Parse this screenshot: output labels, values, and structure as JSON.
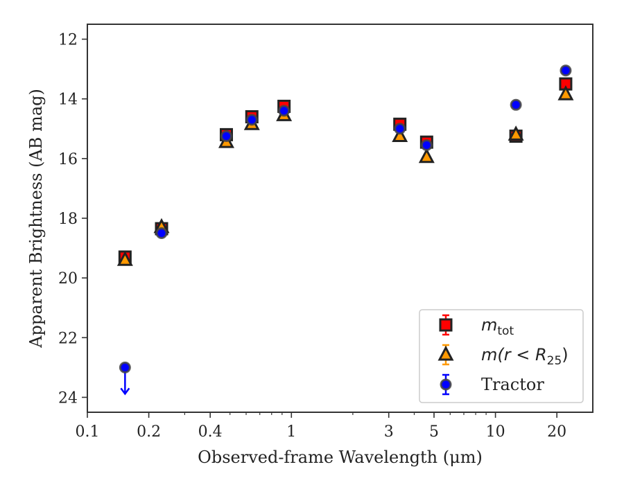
{
  "chart_data": {
    "type": "scatter",
    "title": "",
    "xlabel": "Observed-frame Wavelength (μm)",
    "ylabel": "Apparent Brightness (AB mag)",
    "xscale": "log",
    "xlim": [
      0.1,
      30
    ],
    "ylim": [
      24.5,
      11.5
    ],
    "y_inverted": true,
    "x_ticks": [
      0.1,
      0.2,
      0.4,
      1,
      3,
      5,
      10,
      20
    ],
    "x_tick_labels": [
      "0.1",
      "0.2",
      "0.4",
      "1",
      "3",
      "5",
      "10",
      "20"
    ],
    "y_ticks": [
      12,
      14,
      16,
      18,
      20,
      22,
      24
    ],
    "y_tick_labels": [
      "12",
      "14",
      "16",
      "18",
      "20",
      "22",
      "24"
    ],
    "grid": false,
    "legend_position": "lower-right",
    "series": [
      {
        "key": "mtot",
        "name": "m_tot",
        "marker": "square",
        "color": "#ff0000",
        "edge": "#222222",
        "points": [
          {
            "x": 0.153,
            "y": 19.3
          },
          {
            "x": 0.231,
            "y": 18.35
          },
          {
            "x": 0.48,
            "y": 15.2
          },
          {
            "x": 0.64,
            "y": 14.6
          },
          {
            "x": 0.92,
            "y": 14.25
          },
          {
            "x": 3.4,
            "y": 14.85
          },
          {
            "x": 4.6,
            "y": 15.45
          },
          {
            "x": 12.6,
            "y": 15.25
          },
          {
            "x": 22.1,
            "y": 13.5
          }
        ]
      },
      {
        "key": "mr25",
        "name": "m(r < R25)",
        "marker": "triangle",
        "color": "#ff9900",
        "edge": "#222222",
        "points": [
          {
            "x": 0.153,
            "y": 19.4
          },
          {
            "x": 0.231,
            "y": 18.3
          },
          {
            "x": 0.48,
            "y": 15.45
          },
          {
            "x": 0.64,
            "y": 14.85
          },
          {
            "x": 0.92,
            "y": 14.55
          },
          {
            "x": 3.4,
            "y": 15.25
          },
          {
            "x": 4.6,
            "y": 15.95
          },
          {
            "x": 12.6,
            "y": 15.2
          },
          {
            "x": 22.1,
            "y": 13.85
          }
        ]
      },
      {
        "key": "tractor",
        "name": "Tractor",
        "marker": "circle",
        "color": "#0000ff",
        "edge": "#444444",
        "points": [
          {
            "x": 0.153,
            "y": 23.0,
            "upper_limit": true
          },
          {
            "x": 0.231,
            "y": 18.5
          },
          {
            "x": 0.48,
            "y": 15.25
          },
          {
            "x": 0.64,
            "y": 14.7
          },
          {
            "x": 0.92,
            "y": 14.4
          },
          {
            "x": 3.4,
            "y": 15.0
          },
          {
            "x": 4.6,
            "y": 15.55
          },
          {
            "x": 12.6,
            "y": 14.2
          },
          {
            "x": 22.1,
            "y": 13.05
          }
        ]
      }
    ],
    "legend": [
      {
        "key": "mtot",
        "label_main": "m",
        "label_sub": "tot",
        "label_tail": ""
      },
      {
        "key": "mr25",
        "label_main": "m(r < R",
        "label_sub": "25",
        "label_tail": ")"
      },
      {
        "key": "tractor",
        "label_main": "Tractor",
        "label_sub": "",
        "label_tail": ""
      }
    ]
  }
}
